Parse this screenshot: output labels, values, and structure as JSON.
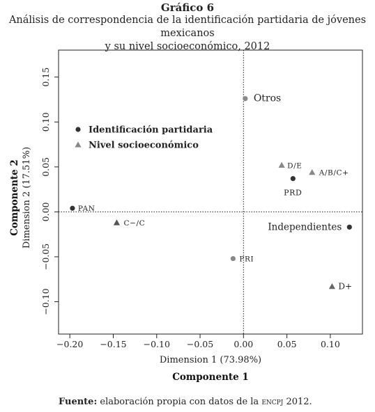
{
  "figure": {
    "title": "Gráfico 6",
    "subtitle_line1": "Análisis de correspondencia de la identificación partidaria de jóvenes mexicanos",
    "subtitle_line2": "y su nivel socioeconómico, 2012"
  },
  "source": {
    "label": "Fuente:",
    "text_before": " elaboración propia con datos de la ",
    "acronym": "encpj",
    "text_after": " 2012."
  },
  "chart_data": {
    "type": "scatter",
    "xlabel": "Dimension 1 (73.98%)",
    "xlabel2": "Componente 1",
    "ylabel": "Dimension 2 (17.51%)",
    "ylabel2": "Componente 2",
    "xlim": [
      -0.213,
      0.137
    ],
    "ylim": [
      -0.136,
      0.18
    ],
    "xticks": [
      -0.2,
      -0.15,
      -0.1,
      -0.05,
      0.0,
      0.05,
      0.1
    ],
    "xtick_labels": [
      "−0.20",
      "−0.15",
      "−0.10",
      "−0.05",
      "0.00",
      "0.05",
      "0.10"
    ],
    "yticks": [
      -0.1,
      -0.05,
      0.0,
      0.05,
      0.1,
      0.15
    ],
    "ytick_labels": [
      "−0.10",
      "−0.05",
      "0.00",
      "0.05",
      "0.10",
      "0.15"
    ],
    "reference_lines": {
      "x": 0,
      "y": 0,
      "style": "dotted"
    },
    "legend": {
      "position": "top-left",
      "entries": [
        {
          "label": "Identificación partidaria",
          "marker": "circle",
          "color": "#333333"
        },
        {
          "label": "Nivel socioeconómico",
          "marker": "triangle",
          "color": "#888888"
        }
      ]
    },
    "series": [
      {
        "name": "Identificación partidaria",
        "marker": "circle",
        "points": [
          {
            "label": "Otros",
            "x": 0.002,
            "y": 0.126,
            "color": "#888888"
          },
          {
            "label": "PRD",
            "x": 0.057,
            "y": 0.037,
            "color": "#333333"
          },
          {
            "label": "PAN",
            "x": -0.197,
            "y": 0.004,
            "color": "#333333"
          },
          {
            "label": "Independientes",
            "x": 0.122,
            "y": -0.017,
            "color": "#333333"
          },
          {
            "label": "PRI",
            "x": -0.012,
            "y": -0.052,
            "color": "#888888"
          }
        ]
      },
      {
        "name": "Nivel socioeconómico",
        "marker": "triangle",
        "points": [
          {
            "label": "D/E",
            "x": 0.044,
            "y": 0.052,
            "color": "#888888"
          },
          {
            "label": "A/B/C+",
            "x": 0.079,
            "y": 0.044,
            "color": "#888888"
          },
          {
            "label": "C−/C",
            "x": -0.146,
            "y": -0.012,
            "color": "#555555"
          },
          {
            "label": "D+",
            "x": 0.102,
            "y": -0.083,
            "color": "#666666"
          }
        ]
      }
    ]
  }
}
